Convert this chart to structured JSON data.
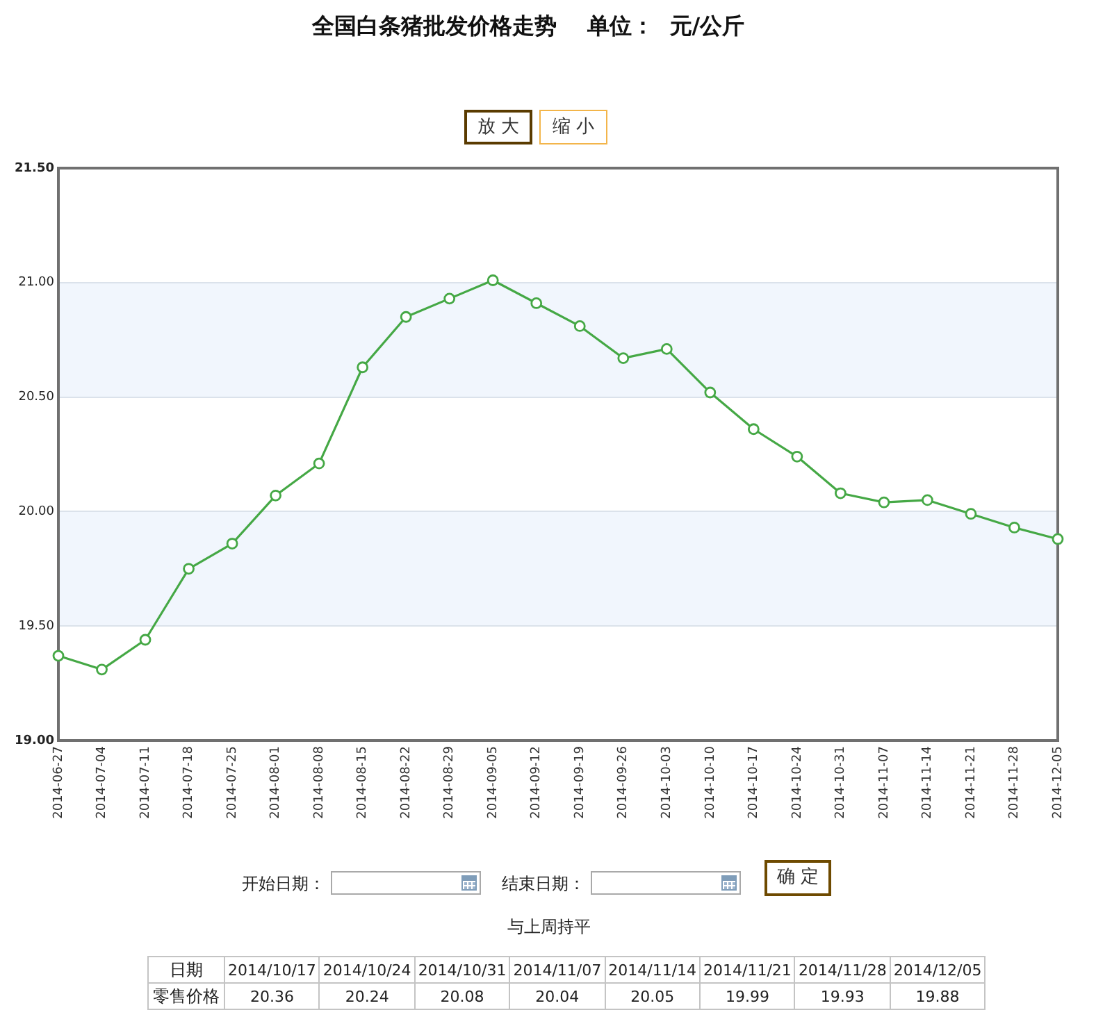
{
  "chart_data": {
    "type": "line",
    "title": "全国白条猪批发价格走势    单位：  元/公斤",
    "categories": [
      "2014-06-27",
      "2014-07-04",
      "2014-07-11",
      "2014-07-18",
      "2014-07-25",
      "2014-08-01",
      "2014-08-08",
      "2014-08-15",
      "2014-08-22",
      "2014-08-29",
      "2014-09-05",
      "2014-09-12",
      "2014-09-19",
      "2014-09-26",
      "2014-10-03",
      "2014-10-10",
      "2014-10-17",
      "2014-10-24",
      "2014-10-31",
      "2014-11-07",
      "2014-11-14",
      "2014-11-21",
      "2014-11-28",
      "2014-12-05"
    ],
    "series": [
      {
        "color": "#45a845",
        "values": [
          19.37,
          19.31,
          19.44,
          19.75,
          19.86,
          20.07,
          20.21,
          20.63,
          20.85,
          20.93,
          21.01,
          20.91,
          20.81,
          20.67,
          20.71,
          20.52,
          20.36,
          20.24,
          20.08,
          20.04,
          20.05,
          19.99,
          19.93,
          19.88
        ]
      }
    ],
    "ylim": [
      19,
      21.5
    ],
    "yticks": [
      {
        "value": 19,
        "label": "19.00"
      },
      {
        "value": 19.5,
        "label": "19.50"
      },
      {
        "value": 20,
        "label": "20.00"
      },
      {
        "value": 20.5,
        "label": "20.50"
      },
      {
        "value": 21,
        "label": "21.00"
      },
      {
        "value": 21.5,
        "label": "21.50"
      }
    ],
    "grid": "y",
    "marker": "circle",
    "line_style": "solid",
    "bands": [
      {
        "axis": "y",
        "from": 19.5,
        "to": 20,
        "color": "#f1f6fd"
      },
      {
        "axis": "y",
        "from": 20.5,
        "to": 21,
        "color": "#f1f6fd"
      }
    ],
    "annotations": [
      "放大",
      "缩小",
      "开始日期：",
      "结束日期：",
      "确定",
      "与上周持平",
      "日期",
      "零售价格",
      "2014/10/17",
      "2014/10/24",
      "2014/10/31",
      "2014/11/07",
      "2014/11/14",
      "2014/11/21",
      "2014/11/28",
      "2014/12/05",
      "20.36",
      "20.24",
      "20.08",
      "20.04",
      "20.05",
      "19.99",
      "19.93",
      "19.88"
    ]
  }
}
